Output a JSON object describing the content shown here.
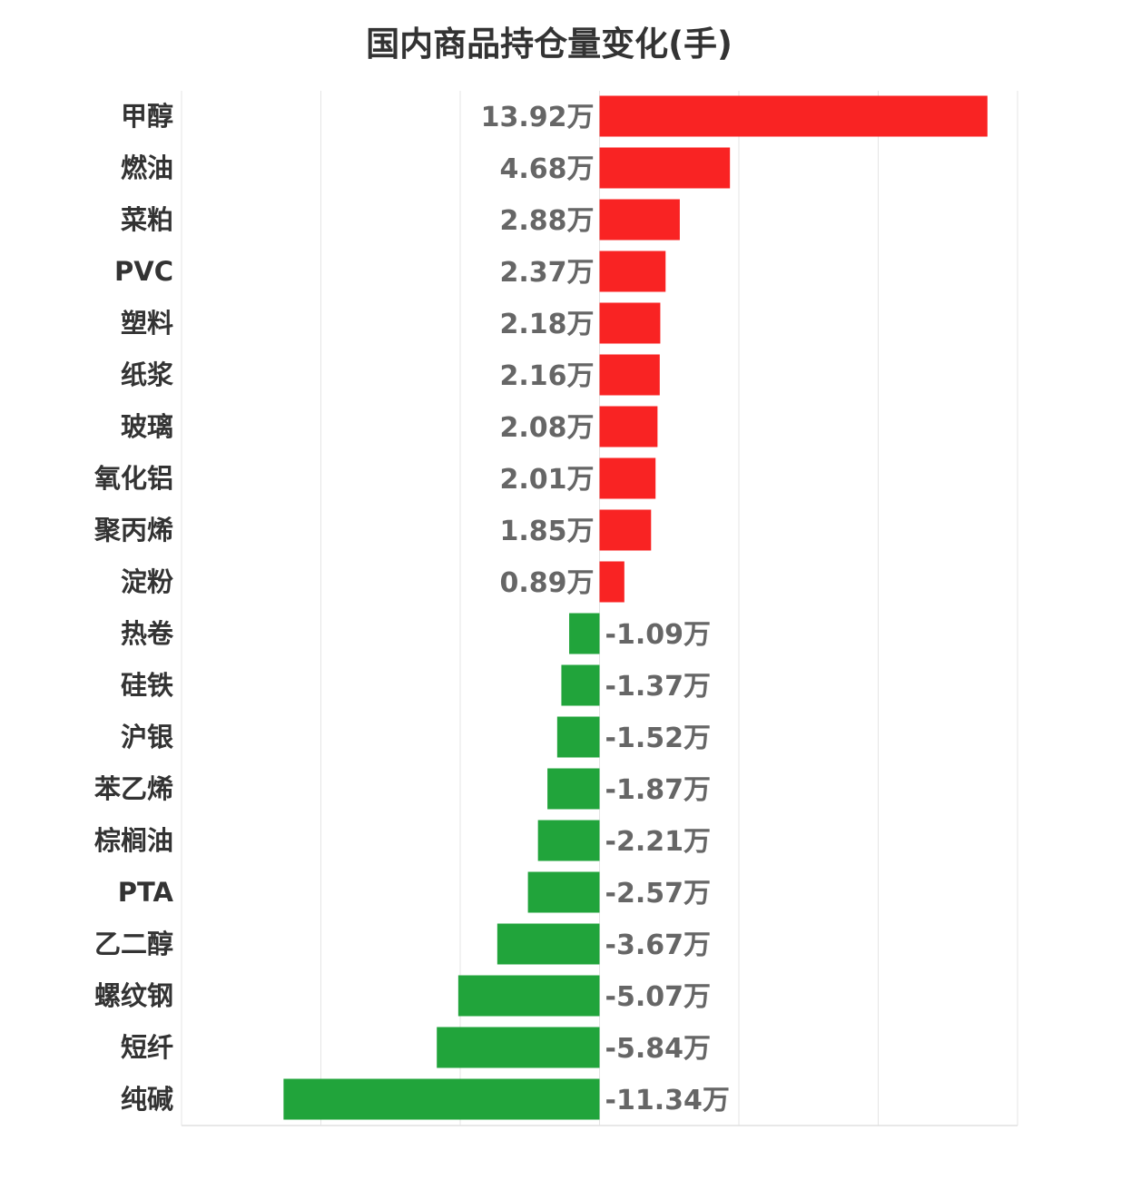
{
  "chart_data": {
    "type": "bar",
    "orientation": "horizontal",
    "title": "国内商品持仓量变化(手)",
    "unit_suffix": "万",
    "xlim": [
      -15,
      15
    ],
    "grid": true,
    "categories": [
      "甲醇",
      "燃油",
      "菜粕",
      "PVC",
      "塑料",
      "纸浆",
      "玻璃",
      "氧化铝",
      "聚丙烯",
      "淀粉",
      "热卷",
      "硅铁",
      "沪银",
      "苯乙烯",
      "棕榈油",
      "PTA",
      "乙二醇",
      "螺纹钢",
      "短纤",
      "纯碱"
    ],
    "values": [
      13.92,
      4.68,
      2.88,
      2.37,
      2.18,
      2.16,
      2.08,
      2.01,
      1.85,
      0.89,
      -1.09,
      -1.37,
      -1.52,
      -1.87,
      -2.21,
      -2.57,
      -3.67,
      -5.07,
      -5.84,
      -11.34
    ],
    "labels": [
      "13.92万",
      "4.68万",
      "2.88万",
      "2.37万",
      "2.18万",
      "2.16万",
      "2.08万",
      "2.01万",
      "1.85万",
      "0.89万",
      "-1.09万",
      "-1.37万",
      "-1.52万",
      "-1.87万",
      "-2.21万",
      "-2.57万",
      "-3.67万",
      "-5.07万",
      "-5.84万",
      "-11.34万"
    ],
    "colors": {
      "positive": "#f92323",
      "negative": "#21a43b"
    }
  }
}
